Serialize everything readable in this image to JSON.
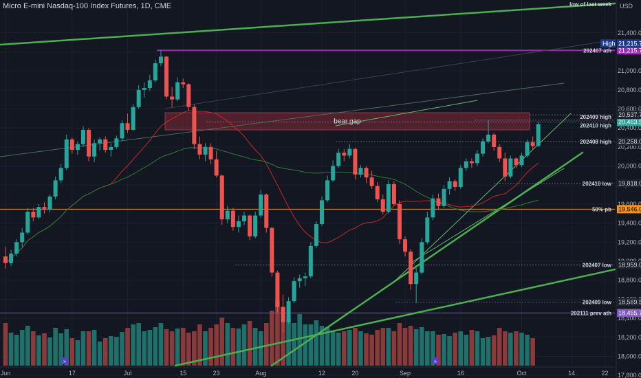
{
  "header": {
    "title": "Micro E-mini Nasdaq-100 Index Futures, 1D, CME",
    "currency": "USD"
  },
  "colors": {
    "bg": "#131722",
    "up": "#26a69a",
    "down": "#ef5350",
    "volume_up": "#1f6f6a",
    "volume_down": "#8a3a3a",
    "trendline": "#4caf50",
    "ath": "#9c27b0",
    "pb": "#f7931a",
    "ma_fast": "#c62828",
    "ma_slow": "#2e7d32",
    "gap": "#7f2a35"
  },
  "chart_data": {
    "type": "candlestick",
    "title": "Micro E-mini Nasdaq-100 Index Futures, 1D, CME",
    "y_axis": {
      "min": 17700,
      "max": 21550,
      "unit": "USD",
      "ticks": [
        "21,400.00",
        "21,200.00",
        "21,000.00",
        "20,800.00",
        "20,600.00",
        "20,400.00",
        "20,200.00",
        "20,000.00",
        "19,800.00",
        "19,600.00",
        "19,400.00",
        "19,200.00",
        "19,000.00",
        "18,800.00",
        "18,600.00",
        "18,400.00",
        "18,200.00",
        "18,000.00",
        "17,800.00"
      ],
      "tick_values": [
        21400,
        21200,
        21000,
        20800,
        20600,
        20400,
        20200,
        20000,
        19800,
        19600,
        19400,
        19200,
        19000,
        18800,
        18600,
        18400,
        18200,
        18000,
        17800
      ]
    },
    "x_axis": {
      "ticks": [
        "Jun",
        "17",
        "Jul",
        "15",
        "23",
        "Aug",
        "12",
        "20",
        "Sep",
        "16",
        "Oct",
        "14",
        "22"
      ],
      "tick_index": [
        0,
        12,
        22,
        32,
        38,
        46,
        57,
        63,
        72,
        82,
        93,
        102,
        108
      ]
    },
    "candles": [
      [
        19050,
        19150,
        18920,
        18980
      ],
      [
        18980,
        19120,
        18950,
        19080
      ],
      [
        19080,
        19230,
        19050,
        19200
      ],
      [
        19200,
        19350,
        19150,
        19300
      ],
      [
        19300,
        19560,
        19280,
        19520
      ],
      [
        19520,
        19560,
        19420,
        19460
      ],
      [
        19460,
        19600,
        19440,
        19570
      ],
      [
        19570,
        19620,
        19500,
        19540
      ],
      [
        19540,
        19700,
        19510,
        19680
      ],
      [
        19680,
        19890,
        19650,
        19850
      ],
      [
        19850,
        20020,
        19820,
        19980
      ],
      [
        19980,
        20330,
        19960,
        20280
      ],
      [
        20280,
        20300,
        20130,
        20170
      ],
      [
        20170,
        20260,
        20120,
        20230
      ],
      [
        20230,
        20420,
        20200,
        20380
      ],
      [
        20380,
        20400,
        20050,
        20100
      ],
      [
        20100,
        20280,
        20040,
        20240
      ],
      [
        20240,
        20300,
        20160,
        20280
      ],
      [
        20280,
        20310,
        20140,
        20170
      ],
      [
        20170,
        20240,
        20100,
        20200
      ],
      [
        20200,
        20320,
        20180,
        20290
      ],
      [
        20290,
        20480,
        20260,
        20450
      ],
      [
        20450,
        20550,
        20350,
        20380
      ],
      [
        20380,
        20650,
        20370,
        20620
      ],
      [
        20620,
        20850,
        20600,
        20800
      ],
      [
        20800,
        20880,
        20720,
        20820
      ],
      [
        20820,
        20960,
        20790,
        20900
      ],
      [
        20900,
        21120,
        20880,
        21080
      ],
      [
        21080,
        21215,
        21050,
        21150
      ],
      [
        21150,
        21160,
        20700,
        20730
      ],
      [
        20730,
        20830,
        20620,
        20700
      ],
      [
        20700,
        20930,
        20680,
        20880
      ],
      [
        20880,
        20920,
        20820,
        20860
      ],
      [
        20860,
        20870,
        20580,
        20620
      ],
      [
        20620,
        20650,
        20180,
        20230
      ],
      [
        20230,
        20310,
        20070,
        20120
      ],
      [
        20120,
        20240,
        20050,
        20200
      ],
      [
        20200,
        20240,
        20020,
        20070
      ],
      [
        20070,
        20160,
        19880,
        19900
      ],
      [
        19900,
        19910,
        19380,
        19440
      ],
      [
        19440,
        19580,
        19400,
        19530
      ],
      [
        19530,
        19560,
        19320,
        19360
      ],
      [
        19360,
        19480,
        19300,
        19420
      ],
      [
        19420,
        19520,
        19380,
        19480
      ],
      [
        19480,
        19490,
        19220,
        19260
      ],
      [
        19260,
        19520,
        19240,
        19480
      ],
      [
        19480,
        19750,
        19460,
        19700
      ],
      [
        19700,
        19710,
        19300,
        19350
      ],
      [
        19350,
        19360,
        18840,
        18880
      ],
      [
        18880,
        18900,
        18460,
        18520
      ],
      [
        18520,
        18650,
        18250,
        18360
      ],
      [
        18360,
        18620,
        18340,
        18580
      ],
      [
        18580,
        18830,
        18560,
        18790
      ],
      [
        18790,
        18860,
        18720,
        18820
      ],
      [
        18820,
        18880,
        18740,
        18840
      ],
      [
        18840,
        19200,
        18820,
        19160
      ],
      [
        19160,
        19420,
        19140,
        19390
      ],
      [
        19390,
        19680,
        19370,
        19640
      ],
      [
        19640,
        19900,
        19620,
        19850
      ],
      [
        19850,
        20060,
        19830,
        20000
      ],
      [
        20000,
        20180,
        19980,
        20140
      ],
      [
        20140,
        20180,
        20050,
        20110
      ],
      [
        20110,
        20230,
        20080,
        20180
      ],
      [
        20180,
        20190,
        19860,
        19910
      ],
      [
        19910,
        20010,
        19880,
        19980
      ],
      [
        19980,
        20000,
        19820,
        19880
      ],
      [
        19880,
        19950,
        19760,
        19790
      ],
      [
        19790,
        19830,
        19620,
        19650
      ],
      [
        19650,
        19700,
        19490,
        19520
      ],
      [
        19520,
        19850,
        19500,
        19810
      ],
      [
        19810,
        19840,
        19580,
        19600
      ],
      [
        19600,
        19640,
        19180,
        19230
      ],
      [
        19230,
        19260,
        19050,
        19100
      ],
      [
        19100,
        19130,
        18700,
        18760
      ],
      [
        18760,
        18930,
        18560,
        18880
      ],
      [
        18880,
        19240,
        18860,
        19200
      ],
      [
        19200,
        19520,
        19180,
        19460
      ],
      [
        19460,
        19700,
        19430,
        19660
      ],
      [
        19660,
        19710,
        19540,
        19580
      ],
      [
        19580,
        19800,
        19560,
        19760
      ],
      [
        19760,
        19880,
        19700,
        19840
      ],
      [
        19840,
        19860,
        19740,
        19780
      ],
      [
        19780,
        20010,
        19760,
        19980
      ],
      [
        19980,
        20080,
        19950,
        20050
      ],
      [
        20050,
        20080,
        19980,
        20030
      ],
      [
        20030,
        20170,
        20000,
        20130
      ],
      [
        20130,
        20290,
        20100,
        20260
      ],
      [
        20260,
        20480,
        20240,
        20330
      ],
      [
        20330,
        20350,
        20160,
        20200
      ],
      [
        20200,
        20230,
        20040,
        20080
      ],
      [
        20080,
        20140,
        19840,
        19890
      ],
      [
        19890,
        20110,
        19870,
        20080
      ],
      [
        20080,
        20090,
        19980,
        20010
      ],
      [
        20010,
        20140,
        19990,
        20110
      ],
      [
        20110,
        20280,
        20090,
        20250
      ],
      [
        20250,
        20310,
        20180,
        20210
      ],
      [
        20210,
        20465,
        20200,
        20440
      ]
    ],
    "volume": [
      0.62,
      0.48,
      0.45,
      0.52,
      0.58,
      0.5,
      0.44,
      0.47,
      0.41,
      0.55,
      0.47,
      0.53,
      0.4,
      0.37,
      0.5,
      0.5,
      0.52,
      0.35,
      0.4,
      0.43,
      0.42,
      0.49,
      0.55,
      0.6,
      0.62,
      0.5,
      0.52,
      0.56,
      0.62,
      0.53,
      0.5,
      0.54,
      0.55,
      0.48,
      0.5,
      0.6,
      0.5,
      0.55,
      0.6,
      0.7,
      0.62,
      0.55,
      0.54,
      0.6,
      0.65,
      0.55,
      0.5,
      0.62,
      0.8,
      0.95,
      0.85,
      0.68,
      0.62,
      0.75,
      0.6,
      0.6,
      0.66,
      0.58,
      0.56,
      0.5,
      0.48,
      0.5,
      0.52,
      0.55,
      0.5,
      0.47,
      0.45,
      0.52,
      0.55,
      0.55,
      0.5,
      0.62,
      0.55,
      0.58,
      0.53,
      0.56,
      0.5,
      0.5,
      0.45,
      0.46,
      0.43,
      0.48,
      0.5,
      0.45,
      0.52,
      0.5,
      0.4,
      0.42,
      0.44,
      0.55,
      0.5,
      0.48,
      0.5,
      0.48,
      0.45,
      0.4
    ],
    "levels": [
      {
        "label": "202407 ath",
        "price": 21215.75,
        "price_label": "21,215.75",
        "style": "ath"
      },
      {
        "label": "202409 high",
        "price": 20482.25,
        "price_label": "20,482.25",
        "style": "plain"
      },
      {
        "label": "202410 high",
        "price": 20463.5,
        "price_label": "20,463.50",
        "style": "last"
      },
      {
        "label": "",
        "price": 20537.75,
        "price_label": "20,537.75",
        "style": "plain"
      },
      {
        "label": "202408 high",
        "price": 20258,
        "price_label": "20,258.00",
        "style": "plain"
      },
      {
        "label": "202410 low",
        "price": 19818,
        "price_label": "19,818.00",
        "style": "plain"
      },
      {
        "label": "50% pb",
        "price": 19546,
        "price_label": "19,546.00",
        "style": "pb"
      },
      {
        "label": "202407 low",
        "price": 18959,
        "price_label": "18,959.00",
        "style": "plain"
      },
      {
        "label": "202409 low",
        "price": 18569.5,
        "price_label": "18,569.50",
        "style": "plain"
      },
      {
        "label": "202111 prev ath",
        "price": 18455.75,
        "price_label": "18,455.75",
        "style": "prevath"
      }
    ],
    "high_tag": {
      "label": "High",
      "price": 21215.75,
      "price_label": "21,215.75"
    },
    "annotations": {
      "bear_gap": "bear gap",
      "low_of_last_week": "low of last week"
    },
    "bear_gap": {
      "top": 20560,
      "bottom": 20380,
      "start_index": 29
    }
  },
  "flags": [
    "flag-1",
    "flag-2"
  ]
}
